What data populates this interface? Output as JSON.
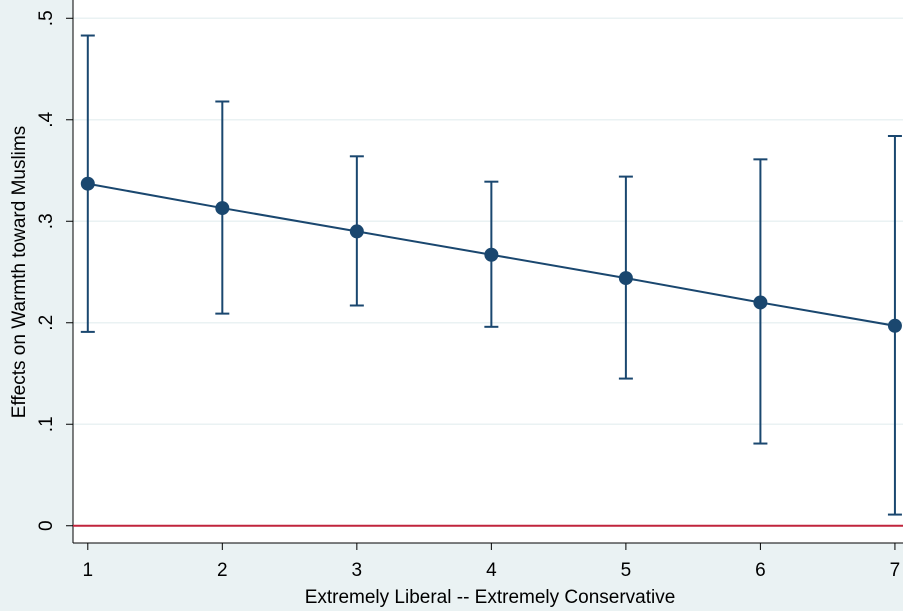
{
  "chart_data": {
    "type": "errorbar-line",
    "x_label": "Extremely Liberal -- Extremely Conservative",
    "y_label": "Effects on Warmth toward Muslims",
    "x": [
      1,
      2,
      3,
      4,
      5,
      6,
      7
    ],
    "series": [
      {
        "color": "#1a476f",
        "values": [
          0.337,
          0.313,
          0.29,
          0.267,
          0.244,
          0.22,
          0.197
        ],
        "lower": [
          0.191,
          0.209,
          0.217,
          0.196,
          0.145,
          0.081,
          0.011
        ],
        "upper": [
          0.483,
          0.418,
          0.364,
          0.339,
          0.344,
          0.361,
          0.384
        ]
      }
    ],
    "xlim": [
      0.89,
      7.06
    ],
    "xticks": [
      1,
      2,
      3,
      4,
      5,
      6,
      7
    ],
    "ylim": [
      -0.017,
      0.518
    ],
    "yticks": [
      0,
      {
        "value": 0.1,
        "label": ".1"
      },
      {
        "value": 0.2,
        "label": ".2"
      },
      {
        "value": 0.3,
        "label": ".3"
      },
      {
        "value": 0.4,
        "label": ".4"
      },
      {
        "value": 0.5,
        "label": ".5"
      }
    ],
    "grid": true,
    "reference_line": {
      "y": 0,
      "color": "#c0243c"
    }
  }
}
